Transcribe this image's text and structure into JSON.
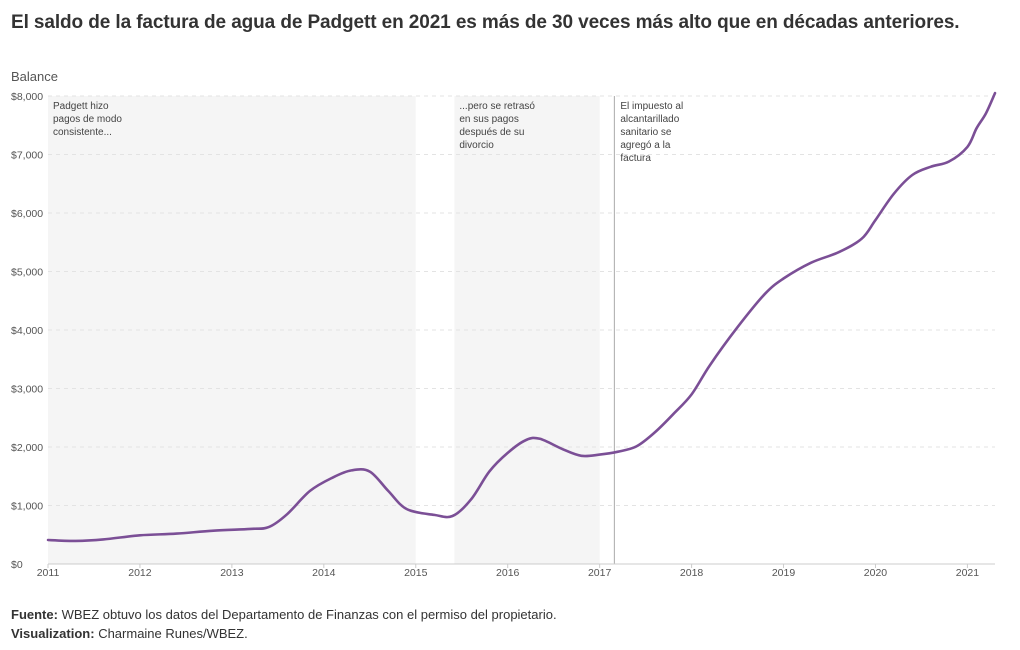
{
  "title": "El saldo de la factura de agua de Padgett en 2021 es más de 30 veces más alto que en décadas anteriores.",
  "footer": {
    "source_label": "Fuente:",
    "source_text": "WBEZ obtuvo los datos del Departamento de Finanzas con el permiso del propietario.",
    "viz_label": "Visualization:",
    "viz_text": "Charmaine Runes/WBEZ."
  },
  "colors": {
    "line": "#7b4f96",
    "band": "#f5f5f5",
    "grid": "#e3e3e3",
    "marker": "#aaaaaa"
  },
  "chart_data": {
    "type": "line",
    "title": "El saldo de la factura de agua de Padgett en 2021 es más de 30 veces más alto que en décadas anteriores.",
    "xlabel": "",
    "ylabel": "Balance",
    "xlim": [
      2011,
      2021.3
    ],
    "ylim": [
      0,
      8000
    ],
    "x_ticks": [
      2011,
      2012,
      2013,
      2014,
      2015,
      2016,
      2017,
      2018,
      2019,
      2020,
      2021
    ],
    "y_ticks": [
      0,
      1000,
      2000,
      3000,
      4000,
      5000,
      6000,
      7000,
      8000
    ],
    "y_tick_labels": [
      "$0",
      "$1,000",
      "$2,000",
      "$3,000",
      "$4,000",
      "$5,000",
      "$6,000",
      "$7,000",
      "$8,000"
    ],
    "grid": "horizontal dashed",
    "series": [
      {
        "x": [
          2011.0,
          2011.3,
          2011.6,
          2012.0,
          2012.4,
          2012.8,
          2013.2,
          2013.4,
          2013.6,
          2013.85,
          2014.1,
          2014.3,
          2014.5,
          2014.7,
          2014.9,
          2015.2,
          2015.4,
          2015.6,
          2015.8,
          2016.0,
          2016.2,
          2016.35,
          2016.6,
          2016.8,
          2017.0,
          2017.2,
          2017.4,
          2017.6,
          2017.8,
          2018.0,
          2018.2,
          2018.5,
          2018.8,
          2019.0,
          2019.3,
          2019.6,
          2019.85,
          2020.0,
          2020.2,
          2020.4,
          2020.6,
          2020.8,
          2021.0,
          2021.1,
          2021.2,
          2021.3
        ],
        "y": [
          410,
          395,
          420,
          490,
          520,
          570,
          600,
          630,
          850,
          1250,
          1480,
          1600,
          1580,
          1250,
          940,
          840,
          820,
          1100,
          1580,
          1900,
          2120,
          2140,
          1960,
          1850,
          1870,
          1920,
          2010,
          2250,
          2560,
          2900,
          3400,
          4050,
          4620,
          4880,
          5150,
          5330,
          5560,
          5880,
          6330,
          6650,
          6790,
          6880,
          7130,
          7450,
          7700,
          8050
        ]
      }
    ],
    "shaded_periods": [
      {
        "from": 2011.0,
        "to": 2015.0,
        "label": "Padgett hizo pagos de modo consistente..."
      },
      {
        "from": 2015.42,
        "to": 2017.0,
        "label": "...pero se retrasó en sus pagos después de su divorcio"
      }
    ],
    "annotations": [
      {
        "x": 2017.16,
        "label": "El impuesto al alcantarillado sanitario se agregó a la factura"
      }
    ]
  }
}
